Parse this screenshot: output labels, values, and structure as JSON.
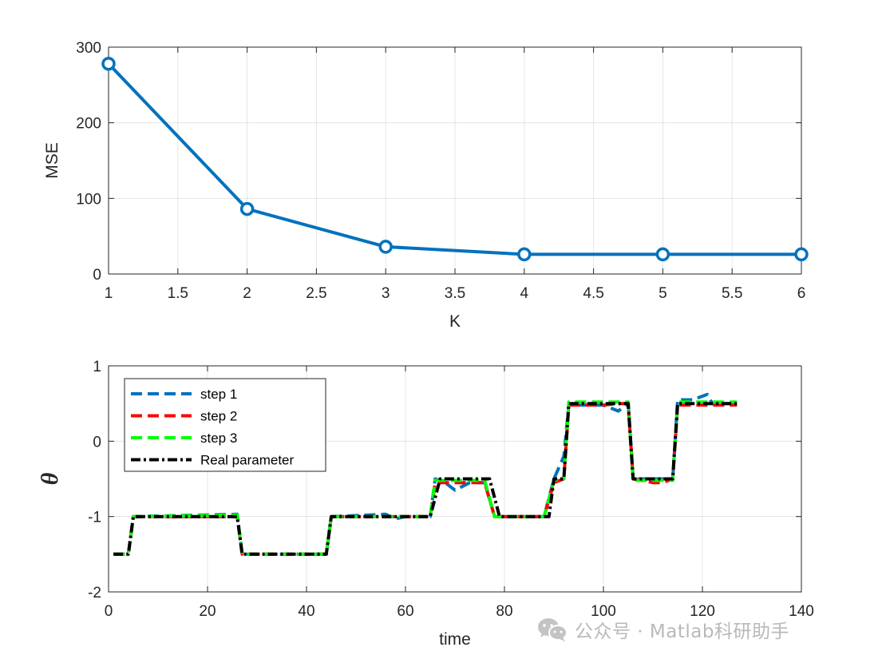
{
  "chart_data": [
    {
      "type": "line",
      "xlabel": "K",
      "ylabel": "MSE",
      "xlim": [
        1,
        6
      ],
      "ylim": [
        0,
        300
      ],
      "xticks": [
        "1",
        "1.5",
        "2",
        "2.5",
        "3",
        "3.5",
        "4",
        "4.5",
        "5",
        "5.5",
        "6"
      ],
      "yticks": [
        "0",
        "100",
        "200",
        "300"
      ],
      "grid": true,
      "series": [
        {
          "color": "#0072BD",
          "marker": "circle",
          "x": [
            1,
            2,
            3,
            4,
            5,
            6
          ],
          "y": [
            278,
            86,
            36,
            26,
            26,
            26
          ]
        }
      ]
    },
    {
      "type": "line",
      "xlabel": "time",
      "ylabel": "θ",
      "xlim": [
        0,
        140
      ],
      "ylim": [
        -2,
        1
      ],
      "xticks": [
        "0",
        "20",
        "40",
        "60",
        "80",
        "100",
        "120",
        "140"
      ],
      "yticks": [
        "-2",
        "-1",
        "0",
        "1"
      ],
      "grid": true,
      "legend_position": "top-left",
      "series": [
        {
          "name": "step 1",
          "color": "#0072BD",
          "style": "dashed",
          "x": [
            1,
            4,
            5,
            26,
            27,
            44,
            45,
            56,
            58,
            60,
            65,
            66,
            68,
            70,
            73,
            76,
            78,
            85,
            88,
            90,
            92,
            93,
            100,
            103,
            105,
            106,
            114,
            115,
            118,
            121,
            122,
            127
          ],
          "y": [
            -1.5,
            -1.5,
            -1,
            -0.97,
            -1.5,
            -1.5,
            -1,
            -0.97,
            -1.03,
            -1,
            -1,
            -0.5,
            -0.55,
            -0.65,
            -0.55,
            -0.55,
            -1,
            -1,
            -1,
            -0.5,
            -0.2,
            0.48,
            0.48,
            0.4,
            0.5,
            -0.5,
            -0.5,
            0.55,
            0.55,
            0.62,
            0.5,
            0.5
          ]
        },
        {
          "name": "step 2",
          "color": "#FF0000",
          "style": "dashed",
          "x": [
            1,
            4,
            5,
            26,
            27,
            44,
            45,
            56,
            58,
            60,
            65,
            66,
            68,
            70,
            73,
            76,
            78,
            85,
            88,
            90,
            92,
            93,
            100,
            103,
            105,
            106,
            110,
            112,
            114,
            115,
            118,
            121,
            122,
            127
          ],
          "y": [
            -1.5,
            -1.5,
            -1,
            -1,
            -1.5,
            -1.5,
            -1,
            -1,
            -1,
            -1,
            -1,
            -0.55,
            -0.55,
            -0.55,
            -0.55,
            -0.55,
            -1,
            -1,
            -1,
            -0.55,
            -0.5,
            0.48,
            0.48,
            0.5,
            0.5,
            -0.5,
            -0.55,
            -0.55,
            -0.5,
            0.48,
            0.48,
            0.48,
            0.48,
            0.48
          ]
        },
        {
          "name": "step 3",
          "color": "#00FF00",
          "style": "dashed",
          "x": [
            1,
            4,
            5,
            26,
            27,
            44,
            45,
            56,
            58,
            60,
            65,
            66,
            68,
            70,
            73,
            76,
            78,
            85,
            88,
            90,
            92,
            93,
            100,
            103,
            105,
            106,
            114,
            115,
            118,
            121,
            122,
            127
          ],
          "y": [
            -1.5,
            -1.5,
            -1,
            -0.98,
            -1.5,
            -1.5,
            -1,
            -1,
            -1,
            -1,
            -1,
            -0.52,
            -0.52,
            -0.52,
            -0.52,
            -0.52,
            -1,
            -1,
            -1,
            -0.52,
            -0.5,
            0.52,
            0.52,
            0.52,
            0.52,
            -0.52,
            -0.52,
            0.52,
            0.52,
            0.52,
            0.52,
            0.52
          ]
        },
        {
          "name": "Real parameter",
          "color": "#000000",
          "style": "dashdot",
          "x": [
            1,
            4,
            5,
            26,
            27,
            44,
            45,
            65,
            67,
            77,
            79,
            89,
            90,
            92,
            93,
            104,
            105,
            106,
            113,
            114,
            115,
            127
          ],
          "y": [
            -1.5,
            -1.5,
            -1,
            -1,
            -1.5,
            -1.5,
            -1,
            -1,
            -0.5,
            -0.5,
            -1,
            -1,
            -0.5,
            -0.5,
            0.5,
            0.5,
            0.5,
            -0.5,
            -0.5,
            -0.5,
            0.5,
            0.5
          ]
        }
      ]
    }
  ],
  "watermark": {
    "icon": "wechat-icon",
    "text": "公众号 · Matlab科研助手"
  }
}
